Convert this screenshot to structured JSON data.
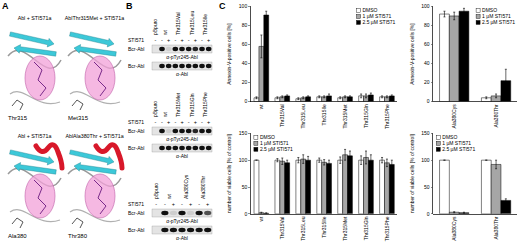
{
  "panel_labels": [
    "A",
    "B",
    "C"
  ],
  "panel_A": {
    "structures": [
      {
        "title": "Abl + STI571a",
        "residue": "Thr315"
      },
      {
        "title": "AblThr315Met + STI571a",
        "residue": "Met315"
      },
      {
        "title": "Abl + STI571a",
        "residue": "Ala380"
      },
      {
        "title": "AblAla380Thr + STI571a",
        "residue": "Thr380"
      }
    ]
  },
  "panel_B": {
    "blots": [
      {
        "treatment": "STI571",
        "lanes": [
          {
            "label": "pBpuro",
            "sti571": [
              "-"
            ]
          },
          {
            "label": "wt",
            "sti571": [
              "-",
              "+"
            ]
          },
          {
            "label": "Thr315Val",
            "sti571": [
              "-",
              "+"
            ]
          },
          {
            "label": "Thr315Leu",
            "sti571": [
              "-",
              "+"
            ]
          },
          {
            "label": "Thr315Ile",
            "sti571": [
              "-",
              "+"
            ]
          }
        ],
        "strips": [
          {
            "band": "Bcr-Abl",
            "antibody": "α-pTyr245-Abl",
            "signal": [
              0,
              1,
              0.1,
              1,
              1,
              1,
              0.9,
              1,
              1
            ]
          },
          {
            "band": "Bcr-Abl",
            "antibody": "α-Abl",
            "signal": [
              0,
              1,
              1,
              1,
              1,
              1,
              1,
              1,
              1
            ]
          }
        ]
      },
      {
        "treatment": "STI571",
        "lanes": [
          {
            "label": "pBpuro",
            "sti571": [
              "-"
            ]
          },
          {
            "label": "wt",
            "sti571": [
              "-",
              "+"
            ]
          },
          {
            "label": "Thr315Met",
            "sti571": [
              "-",
              "+"
            ]
          },
          {
            "label": "Thr315Gln",
            "sti571": [
              "-",
              "+"
            ]
          },
          {
            "label": "Thr315Phe",
            "sti571": [
              "-",
              "+"
            ]
          }
        ],
        "strips": [
          {
            "band": "Bcr-Abl",
            "antibody": "α-pTyr245-Abl",
            "signal": [
              0,
              1,
              0.1,
              1,
              1,
              1,
              0.9,
              1,
              1
            ]
          },
          {
            "band": "Bcr-Abl",
            "antibody": "α-Abl",
            "signal": [
              0,
              1,
              1,
              1,
              1,
              1,
              1,
              1,
              1
            ]
          }
        ]
      },
      {
        "treatment": "STI571",
        "lanes": [
          {
            "label": "pBpuro",
            "sti571": [
              "-"
            ]
          },
          {
            "label": "wt",
            "sti571": [
              "-",
              "+"
            ]
          },
          {
            "label": "Ala380Cys",
            "sti571": [
              "-",
              "+"
            ]
          },
          {
            "label": "Ala380Thr",
            "sti571": [
              "-",
              "+"
            ]
          }
        ],
        "strips": [
          {
            "band": "Bcr-Abl",
            "antibody": "α-pTyr245-Abl",
            "signal": [
              0,
              1,
              0.1,
              1,
              0.1,
              1,
              0.7
            ]
          },
          {
            "band": "Bcr-Abl",
            "antibody": "α-Abl",
            "signal": [
              0,
              1,
              1,
              1,
              1,
              1,
              1
            ]
          }
        ]
      }
    ]
  },
  "chart_data": [
    {
      "type": "bar",
      "y_label": "Annexin-V-positive cells [%]",
      "categories": [
        "wt",
        "Thr315Val",
        "Thr315Leu",
        "Thr315Ile",
        "Thr315Met",
        "Thr315Gln",
        "Thr315Phe"
      ],
      "series": [
        {
          "name": "DMSO",
          "color": "#ffffff",
          "values": [
            4,
            4,
            3,
            5,
            4,
            6,
            5
          ],
          "error": [
            1,
            1,
            1,
            1,
            1,
            2,
            1
          ]
        },
        {
          "name": "1 µM STI571",
          "color": "#a6a6a6",
          "values": [
            58,
            5,
            4,
            5,
            5,
            6,
            5
          ],
          "error": [
            12,
            1,
            1,
            1,
            1,
            2,
            1
          ]
        },
        {
          "name": "2.5 µM STI571",
          "color": "#000000",
          "values": [
            91,
            6,
            5,
            6,
            5,
            7,
            6
          ],
          "error": [
            4,
            1,
            1,
            2,
            1,
            2,
            1
          ]
        }
      ],
      "ylim": [
        0,
        100
      ],
      "yticks": [
        0,
        20,
        40,
        60,
        80,
        100
      ],
      "legend": "top-right"
    },
    {
      "type": "bar",
      "y_label": "Annexin-V-positive cells [%]",
      "categories": [
        "Ala380Cys",
        "Ala380Thr"
      ],
      "series": [
        {
          "name": "DMSO",
          "color": "#ffffff",
          "values": [
            92,
            4
          ],
          "error": [
            3,
            1
          ]
        },
        {
          "name": "1 µM STI571",
          "color": "#a6a6a6",
          "values": [
            90,
            6
          ],
          "error": [
            4,
            2
          ]
        },
        {
          "name": "2.5 µM STI571",
          "color": "#000000",
          "values": [
            95,
            22
          ],
          "error": [
            3,
            12
          ]
        }
      ],
      "ylim": [
        0,
        100
      ],
      "yticks": [
        0,
        20,
        40,
        60,
        80,
        100
      ],
      "legend": "top-right"
    },
    {
      "type": "bar",
      "y_label": "number of viable cells [% of control]",
      "categories": [
        "wt",
        "Thr315Val",
        "Thr315Leu",
        "Thr315Ile",
        "Thr315Met",
        "Thr315Gln",
        "Thr315Phe"
      ],
      "series": [
        {
          "name": "DMSO",
          "color": "#ffffff",
          "values": [
            100,
            100,
            100,
            100,
            100,
            100,
            100
          ],
          "error": [
            0,
            3,
            5,
            4,
            6,
            8,
            5
          ]
        },
        {
          "name": "1 µM STI571",
          "color": "#a6a6a6",
          "values": [
            2,
            98,
            102,
            96,
            110,
            105,
            95
          ],
          "error": [
            1,
            6,
            8,
            5,
            10,
            12,
            7
          ]
        },
        {
          "name": "2.5 µM STI571",
          "color": "#000000",
          "values": [
            1,
            95,
            100,
            94,
            108,
            100,
            92
          ],
          "error": [
            1,
            5,
            7,
            6,
            9,
            10,
            8
          ]
        }
      ],
      "ylim": [
        0,
        150
      ],
      "yticks": [
        0,
        50,
        100,
        150
      ],
      "legend": "top-left"
    },
    {
      "type": "bar",
      "y_label": "number of viable cells [% of control]",
      "categories": [
        "Ala380Cys",
        "Ala380Thr"
      ],
      "series": [
        {
          "name": "DMSO",
          "color": "#ffffff",
          "values": [
            100,
            100
          ],
          "error": [
            0,
            0
          ]
        },
        {
          "name": "1 µM STI571",
          "color": "#a6a6a6",
          "values": [
            3,
            92
          ],
          "error": [
            1,
            8
          ]
        },
        {
          "name": "2.5 µM STI571",
          "color": "#000000",
          "values": [
            2,
            25
          ],
          "error": [
            1,
            3
          ]
        }
      ],
      "ylim": [
        0,
        150
      ],
      "yticks": [
        0,
        50,
        100,
        150
      ],
      "legend": "top-left"
    }
  ]
}
